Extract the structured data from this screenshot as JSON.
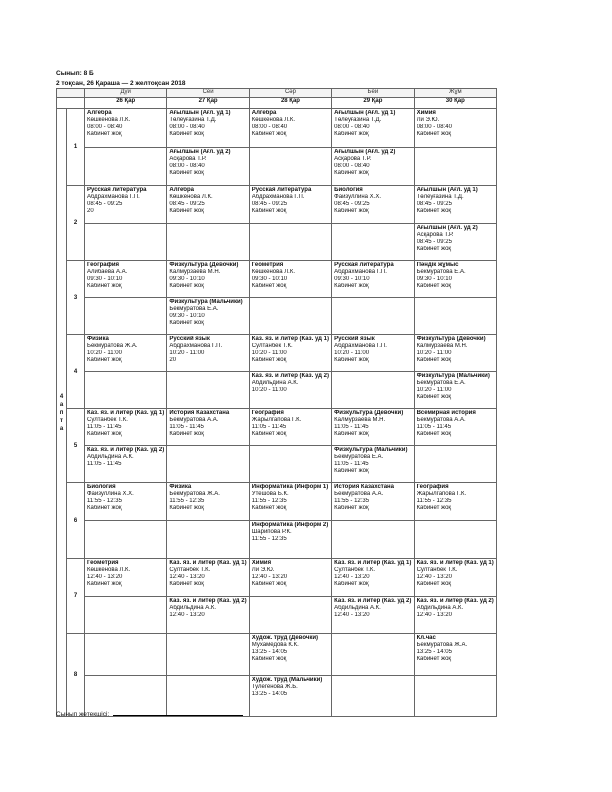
{
  "header": {
    "class": "Сынып: 8 Б",
    "period": "2 тоқсан, 26 Қараша — 2 желтоқсан 2018"
  },
  "table": {
    "week_label": "4 апта",
    "days": [
      "Дүй",
      "Сей",
      "Сәр",
      "Бей",
      "Жұм"
    ],
    "dates": [
      "26 Қар",
      "27 Қар",
      "28 Қар",
      "29 Қар",
      "30 Қар"
    ],
    "rows": [
      {
        "number": "1",
        "cells": [
          [
            [
              "Алгебра",
              "Көшкенова Л.К.",
              "08:00 - 08:40",
              "Кабинет жоқ"
            ],
            []
          ],
          [
            [
              "Ағылшын (Ағл. уд 1)",
              "Төлеуғазина Т.Д.",
              "08:00 - 08:40",
              "Кабинет жоқ"
            ],
            [
              "Ағылшын (Ағл. уд 2)",
              "Асқарова Т.Р.",
              "08:00 - 08:40",
              "Кабинет жоқ"
            ]
          ],
          [
            [
              "Алгебра",
              "Көшкенова Л.К.",
              "08:00 - 08:40",
              "Кабинет жоқ"
            ],
            []
          ],
          [
            [
              "Ағылшын (Ағл. уд 1)",
              "Төлеуғазина Т.Д.",
              "08:00 - 08:40",
              "Кабинет жоқ"
            ],
            [
              "Ағылшын (Ағл. уд 2)",
              "Асқарова Т.Р.",
              "08:00 - 08:40",
              "Кабинет жоқ"
            ]
          ],
          [
            [
              "Химия",
              "Ли Э.Ю.",
              "08:00 - 08:40",
              "Кабинет жоқ"
            ],
            []
          ]
        ]
      },
      {
        "number": "2",
        "cells": [
          [
            [
              "Русская литература",
              "Абдрахманова Г.П.",
              "08:45 - 09:25",
              "20"
            ],
            []
          ],
          [
            [
              "Алгебра",
              "Көшкенова Л.К.",
              "08:45 - 09:25",
              "Кабинет жоқ"
            ],
            []
          ],
          [
            [
              "Русская литература",
              "Абдрахманова Г.П.",
              "08:45 - 09:25",
              "Кабинет жоқ"
            ],
            []
          ],
          [
            [
              "Биология",
              "Файзуллина Х.Х.",
              "08:45 - 09:25",
              "Кабинет жоқ"
            ],
            []
          ],
          [
            [
              "Ағылшын (Ағл. уд 1)",
              "Төлеуғазина Т.Д.",
              "08:45 - 09:25",
              "Кабинет жоқ"
            ],
            [
              "Ағылшын (Ағл. уд 2)",
              "Асқарова Т.Р.",
              "08:45 - 09:25",
              "Кабинет жоқ"
            ]
          ]
        ]
      },
      {
        "number": "3",
        "cells": [
          [
            [
              "География",
              "Алибаева А.А.",
              "09:30 - 10:10",
              "Кабинет жоқ"
            ],
            []
          ],
          [
            [
              "Физкультура (Девочки)",
              "Калмурзаева М.Н.",
              "09:30 - 10:10",
              "Кабинет жоқ"
            ],
            [
              "Физкультура (Мальчики)",
              "Бекмуратова Е.А.",
              "09:30 - 10:10",
              "Кабинет жоқ"
            ]
          ],
          [
            [
              "Геометрия",
              "Көшкенова Л.К.",
              "09:30 - 10:10",
              "Кабинет жоқ"
            ],
            []
          ],
          [
            [
              "Русская литература",
              "Абдрахманова Г.П.",
              "09:30 - 10:10",
              "Кабинет жоқ"
            ],
            []
          ],
          [
            [
              "Пәндік жұмыс",
              "Бекмуратова Е.А.",
              "09:30 - 10:10",
              "Кабинет жоқ"
            ],
            []
          ]
        ]
      },
      {
        "number": "4",
        "cells": [
          [
            [
              "Физика",
              "Бекмуратова Ж.А.",
              "10:20 - 11:00",
              "Кабинет жоқ"
            ],
            []
          ],
          [
            [
              "Русский язык",
              "Абдрахманова Г.П.",
              "10:20 - 11:00",
              "20"
            ],
            []
          ],
          [
            [
              "Каз. яз. и литер (Каз. уд 1)",
              "Султанбек Т.К.",
              "10:20 - 11:00",
              "Кабинет жоқ"
            ],
            [
              "Каз. яз. и литер (Каз. уд 2)",
              "Абдильдина А.К.",
              "10:20 - 11:00"
            ]
          ],
          [
            [
              "Русский язык",
              "Абдрахманова Г.П.",
              "10:20 - 11:00",
              "Кабинет жоқ"
            ],
            []
          ],
          [
            [
              "Физкультура (Девочки)",
              "Калмурзаева М.Н.",
              "10:20 - 11:00",
              "Кабинет жоқ"
            ],
            [
              "Физкультура (Мальчики)",
              "Бекмуратова Е.А.",
              "10:20 - 11:00",
              "Кабинет жоқ"
            ]
          ]
        ]
      },
      {
        "number": "5",
        "cells": [
          [
            [
              "Каз. яз. и литер (Каз. уд 1)",
              "Султанбек Т.К.",
              "11:05 - 11:45",
              "Кабинет жоқ"
            ],
            [
              "Каз. яз. и литер (Каз. уд 2)",
              "Абдильдина А.К.",
              "11:05 - 11:45"
            ]
          ],
          [
            [
              "История Казахстана",
              "Бекмуратова А.А.",
              "11:05 - 11:45",
              "Кабинет жоқ"
            ],
            []
          ],
          [
            [
              "География",
              "Жарылгапова Г.К.",
              "11:05 - 11:45",
              "Кабинет жоқ"
            ],
            []
          ],
          [
            [
              "Физкультура (Девочки)",
              "Калмурзаева М.Н.",
              "11:05 - 11:45",
              "Кабинет жоқ"
            ],
            [
              "Физкультура (Мальчики)",
              "Бекмуратова Е.А.",
              "11:05 - 11:45",
              "Кабинет жоқ"
            ]
          ],
          [
            [
              "Всемирная история",
              "Бекмуратова А.А.",
              "11:05 - 11:45",
              "Кабинет жоқ"
            ],
            []
          ]
        ]
      },
      {
        "number": "6",
        "cells": [
          [
            [
              "Биология",
              "Файзуллина Х.Х.",
              "11:55 - 12:35",
              "Кабинет жоқ"
            ],
            []
          ],
          [
            [
              "Физика",
              "Бекмуратова Ж.А.",
              "11:55 - 12:35",
              "Кабинет жоқ"
            ],
            []
          ],
          [
            [
              "Информатика (Информ 1)",
              "Утешова Б.К.",
              "11:55 - 12:35",
              "Кабинет жоқ"
            ],
            [
              "Информатика (Информ 2)",
              "Шарипова Р.К.",
              "11:55 - 12:35"
            ]
          ],
          [
            [
              "История Казахстана",
              "Бекмуратова А.А.",
              "11:55 - 12:35",
              "Кабинет жоқ"
            ],
            []
          ],
          [
            [
              "География",
              "Жарылгапова Г.К.",
              "11:55 - 12:35",
              "Кабинет жоқ"
            ],
            []
          ]
        ]
      },
      {
        "number": "7",
        "cells": [
          [
            [
              "Геометрия",
              "Көшкенова Л.К.",
              "12:40 - 13:20",
              "Кабинет жоқ"
            ],
            []
          ],
          [
            [
              "Каз. яз. и литер (Каз. уд 1)",
              "Султанбек Т.К.",
              "12:40 - 13:20",
              "Кабинет жоқ"
            ],
            [
              "Каз. яз. и литер (Каз. уд 2)",
              "Абдильдина А.К.",
              "12:40 - 13:20"
            ]
          ],
          [
            [
              "Химия",
              "Ли Э.Ю.",
              "12:40 - 13:20",
              "Кабинет жоқ"
            ],
            []
          ],
          [
            [
              "Каз. яз. и литер (Каз. уд 1)",
              "Султанбек Т.К.",
              "12:40 - 13:20",
              "Кабинет жоқ"
            ],
            [
              "Каз. яз. и литер (Каз. уд 2)",
              "Абдильдина А.К.",
              "12:40 - 13:20"
            ]
          ],
          [
            [
              "Каз. яз. и литер (Каз. уд 1)",
              "Султанбек Т.К.",
              "12:40 - 13:20",
              "Кабинет жоқ"
            ],
            [
              "Каз. яз. и литер (Каз. уд 2)",
              "Абдильдина А.К.",
              "12:40 - 13:20"
            ]
          ]
        ]
      },
      {
        "number": "8",
        "cells": [
          [
            [],
            []
          ],
          [
            [],
            []
          ],
          [
            [
              "Худож. труд (Девочки)",
              "Мухамедова К.К.",
              "13:25 - 14:05",
              "Кабинет жоқ"
            ],
            [
              "Худож. труд (Мальчики)",
              "Тулегенова Ж.Б.",
              "13:25 - 14:05"
            ]
          ],
          [
            [],
            []
          ],
          [
            [
              "Кл.час",
              "Бекмуратова Ж.А.",
              "13:25 - 14:05",
              "Кабинет жоқ"
            ],
            []
          ]
        ]
      }
    ]
  },
  "footer": {
    "signature": "Сынып жетекшісі:"
  }
}
